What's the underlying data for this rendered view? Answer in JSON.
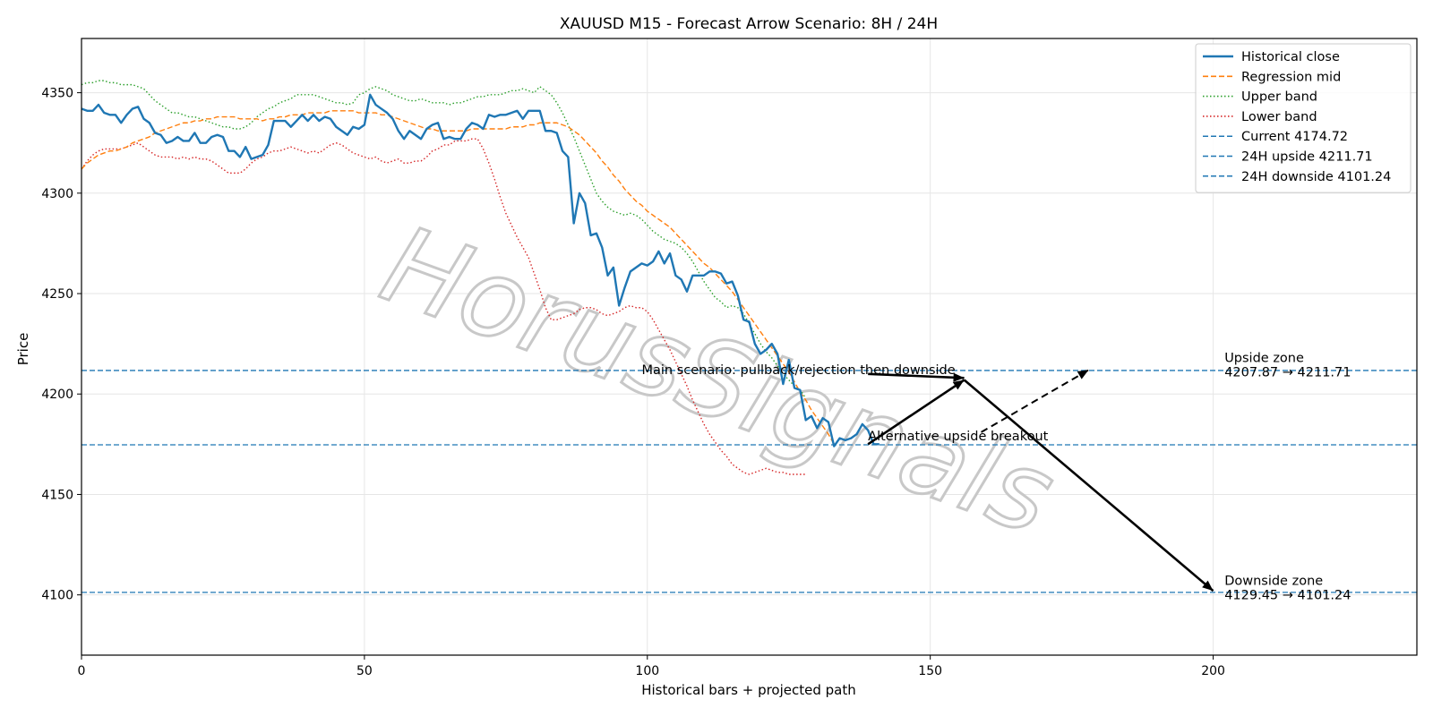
{
  "chart_data": {
    "type": "line",
    "title": "XAUUSD M15 - Forecast Arrow Scenario: 8H / 24H",
    "xlabel": "Historical bars + projected path",
    "ylabel": "Price",
    "xlim": [
      0,
      236
    ],
    "ylim": [
      4070,
      4377
    ],
    "x_ticks": [
      0,
      50,
      100,
      150,
      200
    ],
    "y_ticks": [
      4100,
      4150,
      4200,
      4250,
      4300,
      4350
    ],
    "grid": true,
    "legend_position": "upper-right",
    "watermark": "HorusSignals",
    "series": [
      {
        "name": "Historical close",
        "style": "solid",
        "color": "#1f77b4",
        "x_start": 0,
        "values": [
          4342,
          4341,
          4341,
          4344,
          4340,
          4339,
          4339,
          4335,
          4339,
          4342,
          4343,
          4337,
          4335,
          4330,
          4329,
          4325,
          4326,
          4328,
          4326,
          4326,
          4330,
          4325,
          4325,
          4328,
          4329,
          4328,
          4321,
          4321,
          4318,
          4323,
          4317,
          4318,
          4319,
          4324,
          4336,
          4336,
          4336,
          4333,
          4336,
          4339,
          4336,
          4339,
          4336,
          4338,
          4337,
          4333,
          4331,
          4329,
          4333,
          4332,
          4334,
          4349,
          4344,
          4342,
          4340,
          4337,
          4331,
          4327,
          4331,
          4329,
          4327,
          4332,
          4334,
          4335,
          4327,
          4328,
          4327,
          4327,
          4332,
          4335,
          4334,
          4332,
          4339,
          4338,
          4339,
          4339,
          4340,
          4341,
          4337,
          4341,
          4341,
          4341,
          4331,
          4331,
          4330,
          4321,
          4318,
          4285,
          4300,
          4295,
          4279,
          4280,
          4273,
          4259,
          4263,
          4244,
          4253,
          4261,
          4263,
          4265,
          4264,
          4266,
          4271,
          4265,
          4270,
          4259,
          4257,
          4251,
          4259,
          4259,
          4259,
          4261,
          4261,
          4260,
          4255,
          4256,
          4249,
          4237,
          4236,
          4225,
          4220,
          4222,
          4225,
          4220,
          4205,
          4217,
          4203,
          4202,
          4187,
          4189,
          4183,
          4188,
          4186,
          4174,
          4178,
          4177,
          4178,
          4180,
          4185,
          4182,
          4175,
          4175
        ]
      },
      {
        "name": "Regression mid",
        "style": "dashed",
        "color": "#ff7f0e",
        "x_start": 0,
        "values": [
          4312,
          4315,
          4317,
          4319,
          4320,
          4321,
          4321,
          4322,
          4323,
          4325,
          4326,
          4327,
          4328,
          4330,
          4331,
          4332,
          4333,
          4334,
          4335,
          4335,
          4336,
          4336,
          4337,
          4337,
          4338,
          4338,
          4338,
          4338,
          4337,
          4337,
          4337,
          4337,
          4336,
          4337,
          4337,
          4338,
          4338,
          4339,
          4339,
          4339,
          4340,
          4340,
          4340,
          4340,
          4341,
          4341,
          4341,
          4341,
          4341,
          4340,
          4340,
          4340,
          4340,
          4339,
          4339,
          4338,
          4337,
          4336,
          4335,
          4334,
          4333,
          4332,
          4332,
          4331,
          4331,
          4331,
          4331,
          4331,
          4331,
          4332,
          4332,
          4332,
          4332,
          4332,
          4332,
          4332,
          4333,
          4333,
          4333,
          4334,
          4334,
          4335,
          4335,
          4335,
          4335,
          4334,
          4333,
          4331,
          4329,
          4326,
          4323,
          4320,
          4316,
          4313,
          4309,
          4306,
          4302,
          4299,
          4296,
          4294,
          4291,
          4289,
          4287,
          4285,
          4283,
          4280,
          4277,
          4274,
          4271,
          4268,
          4265,
          4263,
          4260,
          4257,
          4254,
          4251,
          4247,
          4243,
          4239,
          4235,
          4231,
          4227,
          4223,
          4219,
          4215,
          4211,
          4206,
          4201,
          4197,
          4192,
          4188,
          4184,
          4180,
          4175
        ]
      },
      {
        "name": "Upper band",
        "style": "dotted",
        "color": "#2ca02c",
        "x_start": 0,
        "values": [
          4354,
          4355,
          4355,
          4356,
          4356,
          4355,
          4355,
          4354,
          4354,
          4354,
          4353,
          4352,
          4349,
          4346,
          4344,
          4342,
          4340,
          4340,
          4339,
          4338,
          4338,
          4337,
          4336,
          4335,
          4334,
          4333,
          4333,
          4332,
          4332,
          4333,
          4335,
          4338,
          4340,
          4342,
          4343,
          4345,
          4346,
          4347,
          4349,
          4349,
          4349,
          4349,
          4348,
          4347,
          4346,
          4345,
          4345,
          4344,
          4345,
          4349,
          4350,
          4352,
          4353,
          4352,
          4351,
          4349,
          4348,
          4347,
          4346,
          4346,
          4347,
          4346,
          4345,
          4345,
          4345,
          4344,
          4345,
          4345,
          4346,
          4347,
          4348,
          4348,
          4349,
          4349,
          4349,
          4350,
          4351,
          4351,
          4352,
          4351,
          4350,
          4353,
          4351,
          4349,
          4345,
          4340,
          4334,
          4328,
          4321,
          4314,
          4307,
          4300,
          4296,
          4293,
          4291,
          4290,
          4289,
          4290,
          4289,
          4287,
          4284,
          4281,
          4279,
          4277,
          4276,
          4275,
          4273,
          4270,
          4266,
          4261,
          4256,
          4252,
          4248,
          4246,
          4243,
          4244,
          4243,
          4240,
          4235,
          4230,
          4225,
          4221,
          4218,
          4214,
          4210,
          4207,
          4204,
          4202,
          4198
        ]
      },
      {
        "name": "Lower band",
        "style": "dotted",
        "color": "#d62728",
        "x_start": 0,
        "values": [
          4312,
          4316,
          4319,
          4321,
          4322,
          4322,
          4322,
          4322,
          4323,
          4324,
          4325,
          4323,
          4321,
          4319,
          4318,
          4318,
          4318,
          4317,
          4318,
          4317,
          4318,
          4317,
          4317,
          4316,
          4314,
          4312,
          4310,
          4310,
          4310,
          4312,
          4315,
          4317,
          4318,
          4320,
          4321,
          4321,
          4322,
          4323,
          4322,
          4321,
          4320,
          4321,
          4320,
          4322,
          4324,
          4325,
          4324,
          4322,
          4320,
          4319,
          4318,
          4317,
          4318,
          4316,
          4315,
          4316,
          4317,
          4315,
          4315,
          4316,
          4316,
          4318,
          4321,
          4322,
          4324,
          4324,
          4326,
          4326,
          4326,
          4327,
          4327,
          4322,
          4315,
          4307,
          4298,
          4290,
          4284,
          4278,
          4273,
          4268,
          4260,
          4252,
          4243,
          4237,
          4237,
          4238,
          4239,
          4240,
          4242,
          4243,
          4243,
          4242,
          4240,
          4239,
          4240,
          4241,
          4243,
          4244,
          4243,
          4243,
          4241,
          4237,
          4232,
          4227,
          4222,
          4216,
          4210,
          4204,
          4197,
          4191,
          4185,
          4180,
          4176,
          4172,
          4169,
          4165,
          4163,
          4161,
          4160,
          4161,
          4162,
          4163,
          4162,
          4161,
          4161,
          4160,
          4160,
          4160,
          4160
        ]
      }
    ],
    "hlines": [
      {
        "name": "Current 4174.72",
        "y": 4174.72,
        "color": "#1f77b4",
        "style": "dashed"
      },
      {
        "name": "24H upside 4211.71",
        "y": 4211.71,
        "color": "#1f77b4",
        "style": "dashed"
      },
      {
        "name": "24H downside 4101.24",
        "y": 4101.24,
        "color": "#1f77b4",
        "style": "dashed"
      }
    ],
    "arrows": [
      {
        "from": [
          139,
          4175
        ],
        "to": [
          156,
          4207
        ],
        "style": "solid"
      },
      {
        "from": [
          156,
          4207
        ],
        "to": [
          200,
          4102
        ],
        "style": "solid"
      },
      {
        "from": [
          139,
          4210
        ],
        "to": [
          156,
          4208
        ],
        "style": "solid"
      },
      {
        "from": [
          159,
          4181
        ],
        "to": [
          178,
          4212
        ],
        "style": "dashed"
      }
    ],
    "annotations": [
      {
        "text": "Main scenario: pullback/rejection then downside",
        "x": 99,
        "y": 4210
      },
      {
        "text": "Alternative upside breakout",
        "x": 139,
        "y": 4177
      },
      {
        "text": "Upside zone",
        "x": 202,
        "y": 4216,
        "line": 1
      },
      {
        "text": "4207.87 → 4211.71",
        "x": 202,
        "y": 4216,
        "line": 2
      },
      {
        "text": "Downside zone",
        "x": 202,
        "y": 4105,
        "line": 1
      },
      {
        "text": "4129.45 → 4101.24",
        "x": 202,
        "y": 4105,
        "line": 2
      }
    ]
  }
}
